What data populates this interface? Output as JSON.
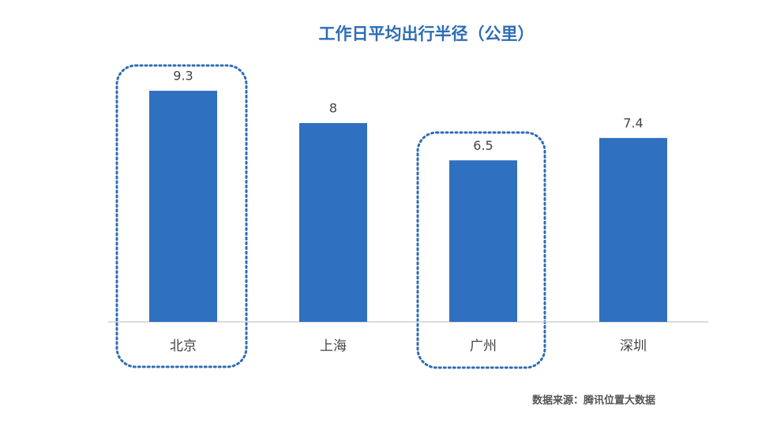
{
  "chart_data": {
    "type": "bar",
    "title": "工作日平均出行半径（公里）",
    "categories": [
      "北京",
      "上海",
      "广州",
      "深圳"
    ],
    "values": [
      9.3,
      8,
      6.5,
      7.4
    ],
    "color": "#3070c0",
    "source": "数据来源：腾讯位置大数据"
  }
}
